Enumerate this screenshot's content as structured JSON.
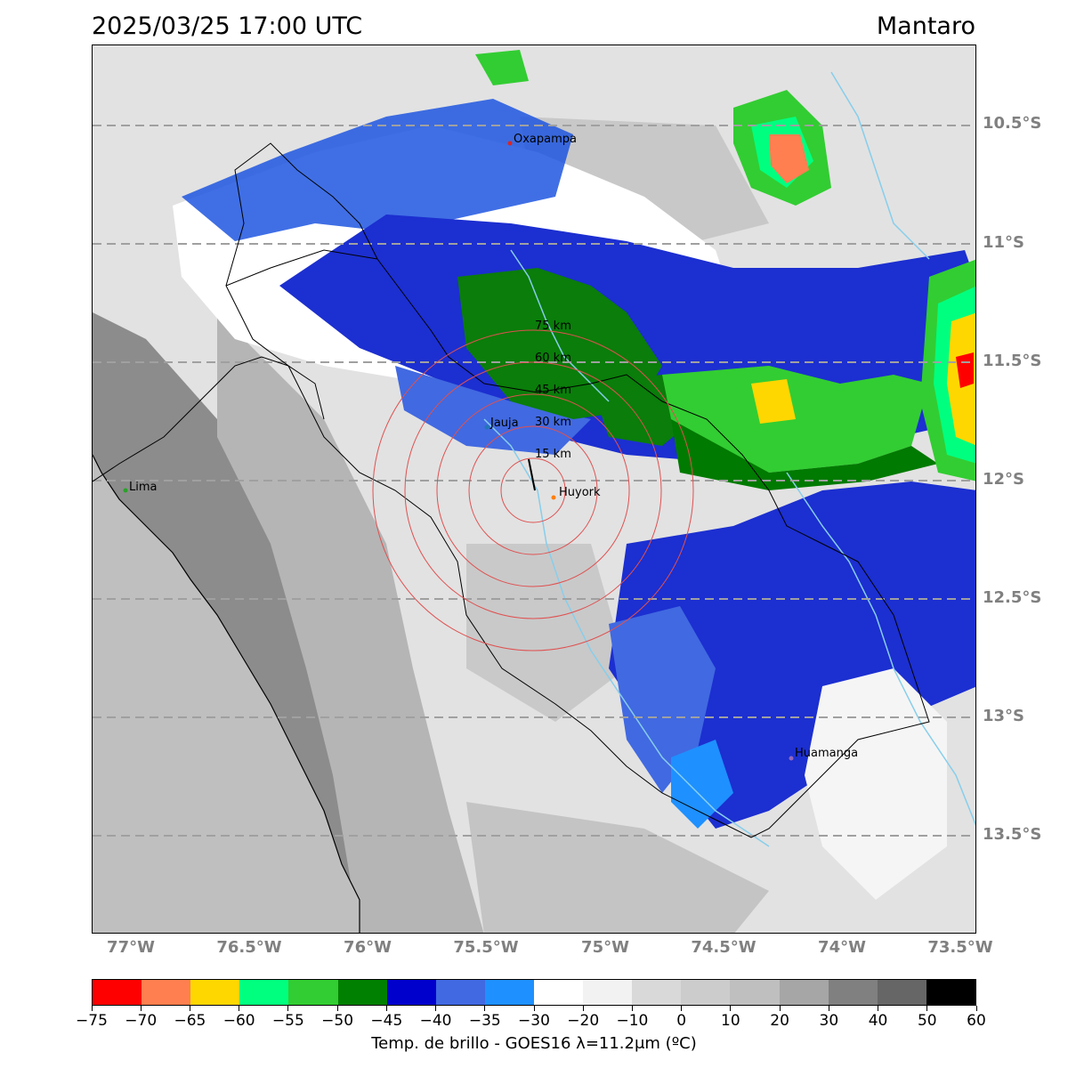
{
  "title": {
    "datetime": "2025/03/25 17:00 UTC",
    "region": "Mantaro"
  },
  "latitude_labels": [
    "10.5°S",
    "11°S",
    "11.5°S",
    "12°S",
    "12.5°S",
    "13°S",
    "13.5°S"
  ],
  "longitude_labels": [
    "77°W",
    "76.5°W",
    "76°W",
    "75.5°W",
    "75°W",
    "74.5°W",
    "74°W",
    "73.5°W"
  ],
  "cities": [
    {
      "name": "Oxapampa",
      "dot_color": "#d62728"
    },
    {
      "name": "Jauja",
      "dot_color": "#1f77b4"
    },
    {
      "name": "Huyork",
      "dot_color": "#ff7f0e"
    },
    {
      "name": "Lima",
      "dot_color": "#2ca02c"
    },
    {
      "name": "Huamanga",
      "dot_color": "#9467bd"
    }
  ],
  "range_rings": [
    "15 km",
    "30 km",
    "45 km",
    "60 km",
    "75 km"
  ],
  "colorbar": {
    "label": "Temp. de brillo - GOES16 λ=11.2μm (ºC)",
    "ticks": [
      "−75",
      "−70",
      "−65",
      "−60",
      "−55",
      "−50",
      "−45",
      "−40",
      "−35",
      "−30",
      "−20",
      "−10",
      "0",
      "10",
      "20",
      "30",
      "40",
      "50",
      "60"
    ],
    "colors": [
      "#ff0000",
      "#ff7f50",
      "#ffd700",
      "#00ff7f",
      "#32cd32",
      "#008000",
      "#0000cd",
      "#4169e1",
      "#1e90ff",
      "#ffffff",
      "#f2f2f2",
      "#d9d9d9",
      "#cccccc",
      "#bfbfbf",
      "#a6a6a6",
      "#808080",
      "#666666",
      "#000000"
    ]
  },
  "colors": {
    "ocean": "#bfbfbf",
    "river": "#87ceeb",
    "gridline": "#a0a0a0",
    "ring": "#e05050",
    "border": "#000000"
  }
}
